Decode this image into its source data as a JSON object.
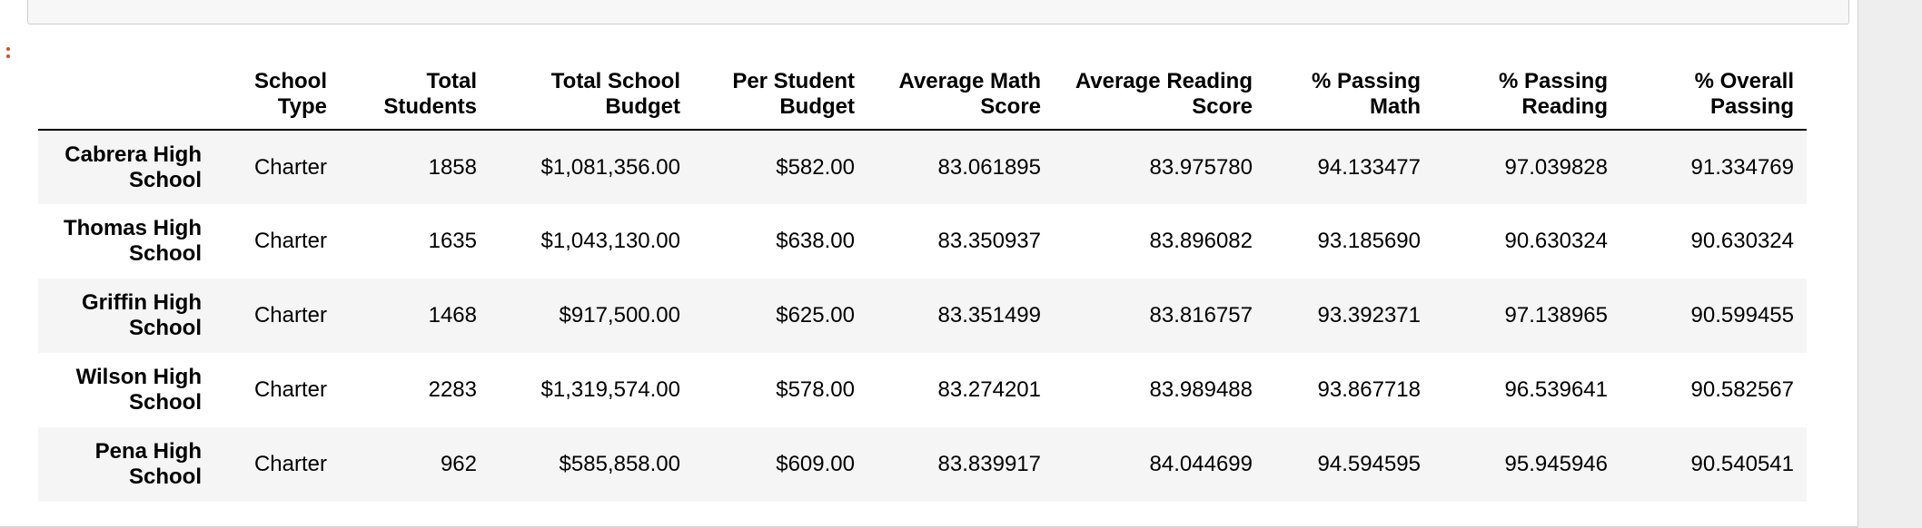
{
  "table": {
    "columns": [
      "",
      "School Type",
      "Total Students",
      "Total School Budget",
      "Per Student Budget",
      "Average Math Score",
      "Average Reading Score",
      "% Passing Math",
      "% Passing Reading",
      "% Overall Passing"
    ],
    "rows": [
      {
        "school": "Cabrera High School",
        "type": "Charter",
        "students": "1858",
        "budget": "$1,081,356.00",
        "per_student": "$582.00",
        "math": "83.061895",
        "reading": "83.975780",
        "pass_math": "94.133477",
        "pass_reading": "97.039828",
        "overall": "91.334769"
      },
      {
        "school": "Thomas High School",
        "type": "Charter",
        "students": "1635",
        "budget": "$1,043,130.00",
        "per_student": "$638.00",
        "math": "83.350937",
        "reading": "83.896082",
        "pass_math": "93.185690",
        "pass_reading": "90.630324",
        "overall": "90.630324"
      },
      {
        "school": "Griffin High School",
        "type": "Charter",
        "students": "1468",
        "budget": "$917,500.00",
        "per_student": "$625.00",
        "math": "83.351499",
        "reading": "83.816757",
        "pass_math": "93.392371",
        "pass_reading": "97.138965",
        "overall": "90.599455"
      },
      {
        "school": "Wilson High School",
        "type": "Charter",
        "students": "2283",
        "budget": "$1,319,574.00",
        "per_student": "$578.00",
        "math": "83.274201",
        "reading": "83.989488",
        "pass_math": "93.867718",
        "pass_reading": "96.539641",
        "overall": "90.582567"
      },
      {
        "school": "Pena High School",
        "type": "Charter",
        "students": "962",
        "budget": "$585,858.00",
        "per_student": "$609.00",
        "math": "83.839917",
        "reading": "84.044699",
        "pass_math": "94.594595",
        "pass_reading": "95.945946",
        "overall": "90.540541"
      }
    ]
  },
  "colors": {
    "collapse_handle": "#d84a2a",
    "row_stripe": "#f5f5f5"
  }
}
